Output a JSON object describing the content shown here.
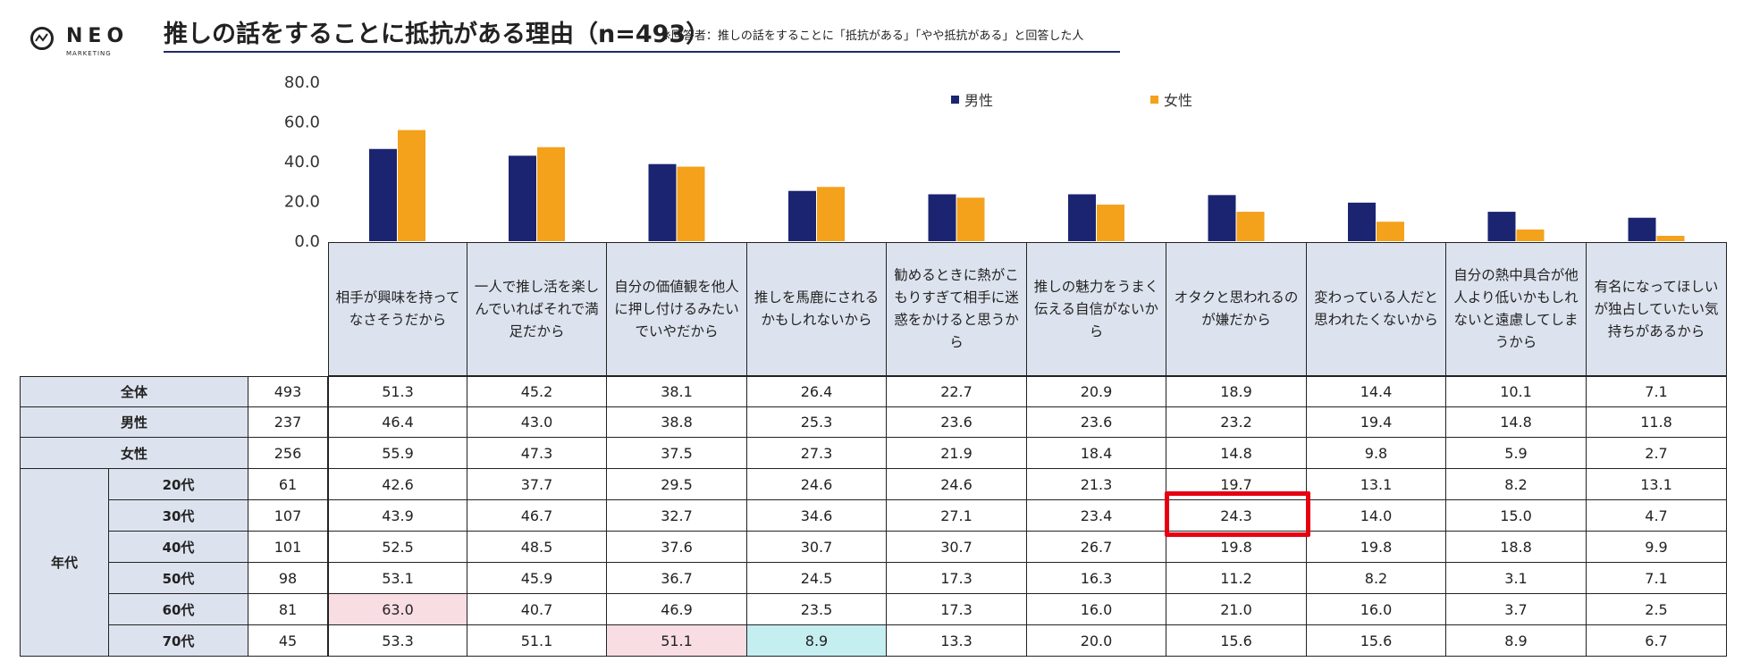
{
  "logo": {
    "name": "NEO",
    "sub": "MARKETING"
  },
  "title": "推しの話をすることに抵抗がある理由（n=493）",
  "note": "※回答者：推しの話をすることに「抵抗がある」「やや抵抗がある」と回答した人",
  "colors": {
    "male": "#1b2470",
    "female": "#f4a11c",
    "header": "#dde3ee",
    "pink": "#f8dde3",
    "cyan": "#c5eef0",
    "highlight": "#e60012"
  },
  "chart_data": {
    "type": "bar",
    "categories": [
      "相手が興味を持ってなさそうだから",
      "一人で推し活を楽しんでいればそれで満足だから",
      "自分の価値観を他人に押し付けるみたいでいやだから",
      "推しを馬鹿にされるかもしれないから",
      "勧めるときに熱がこもりすぎて相手に迷惑をかけると思うから",
      "推しの魅力をうまく伝える自信がないから",
      "オタクと思われるのが嫌だから",
      "変わっている人だと思われたくないから",
      "自分の熱中具合が他人より低いかもしれないと遠慮してしまうから",
      "有名になってほしいが独占していたい気持ちがあるから"
    ],
    "series": [
      {
        "name": "男性",
        "color": "#1b2470",
        "values": [
          46.4,
          43.0,
          38.8,
          25.3,
          23.6,
          23.6,
          23.2,
          19.4,
          14.8,
          11.8
        ]
      },
      {
        "name": "女性",
        "color": "#f4a11c",
        "values": [
          55.9,
          47.3,
          37.5,
          27.3,
          21.9,
          18.4,
          14.8,
          9.8,
          5.9,
          2.7
        ]
      }
    ],
    "yticks": [
      "80.0",
      "60.0",
      "40.0",
      "20.0",
      "0.0"
    ],
    "ylim": [
      0,
      80
    ],
    "legend": "top-right"
  },
  "table": {
    "group_label": "年代",
    "rows": [
      {
        "label": "全体",
        "n": "493",
        "values": [
          "51.3",
          "45.2",
          "38.1",
          "26.4",
          "22.7",
          "20.9",
          "18.9",
          "14.4",
          "10.1",
          "7.1"
        ]
      },
      {
        "label": "男性",
        "n": "237",
        "values": [
          "46.4",
          "43.0",
          "38.8",
          "25.3",
          "23.6",
          "23.6",
          "23.2",
          "19.4",
          "14.8",
          "11.8"
        ]
      },
      {
        "label": "女性",
        "n": "256",
        "values": [
          "55.9",
          "47.3",
          "37.5",
          "27.3",
          "21.9",
          "18.4",
          "14.8",
          "9.8",
          "5.9",
          "2.7"
        ]
      },
      {
        "label": "20代",
        "n": "61",
        "values": [
          "42.6",
          "37.7",
          "29.5",
          "24.6",
          "24.6",
          "21.3",
          "19.7",
          "13.1",
          "8.2",
          "13.1"
        ]
      },
      {
        "label": "30代",
        "n": "107",
        "values": [
          "43.9",
          "46.7",
          "32.7",
          "34.6",
          "27.1",
          "23.4",
          "24.3",
          "14.0",
          "15.0",
          "4.7"
        ]
      },
      {
        "label": "40代",
        "n": "101",
        "values": [
          "52.5",
          "48.5",
          "37.6",
          "30.7",
          "30.7",
          "26.7",
          "19.8",
          "19.8",
          "18.8",
          "9.9"
        ]
      },
      {
        "label": "50代",
        "n": "98",
        "values": [
          "53.1",
          "45.9",
          "36.7",
          "24.5",
          "17.3",
          "16.3",
          "11.2",
          "8.2",
          "3.1",
          "7.1"
        ]
      },
      {
        "label": "60代",
        "n": "81",
        "values": [
          "63.0",
          "40.7",
          "46.9",
          "23.5",
          "17.3",
          "16.0",
          "21.0",
          "16.0",
          "3.7",
          "2.5"
        ]
      },
      {
        "label": "70代",
        "n": "45",
        "values": [
          "53.3",
          "51.1",
          "51.1",
          "8.9",
          "13.3",
          "20.0",
          "15.6",
          "15.6",
          "8.9",
          "6.7"
        ]
      }
    ],
    "pink_cells": [
      [
        7,
        0
      ],
      [
        8,
        2
      ]
    ],
    "cyan_cells": [
      [
        8,
        3
      ]
    ],
    "highlight_cell": [
      4,
      6
    ]
  }
}
